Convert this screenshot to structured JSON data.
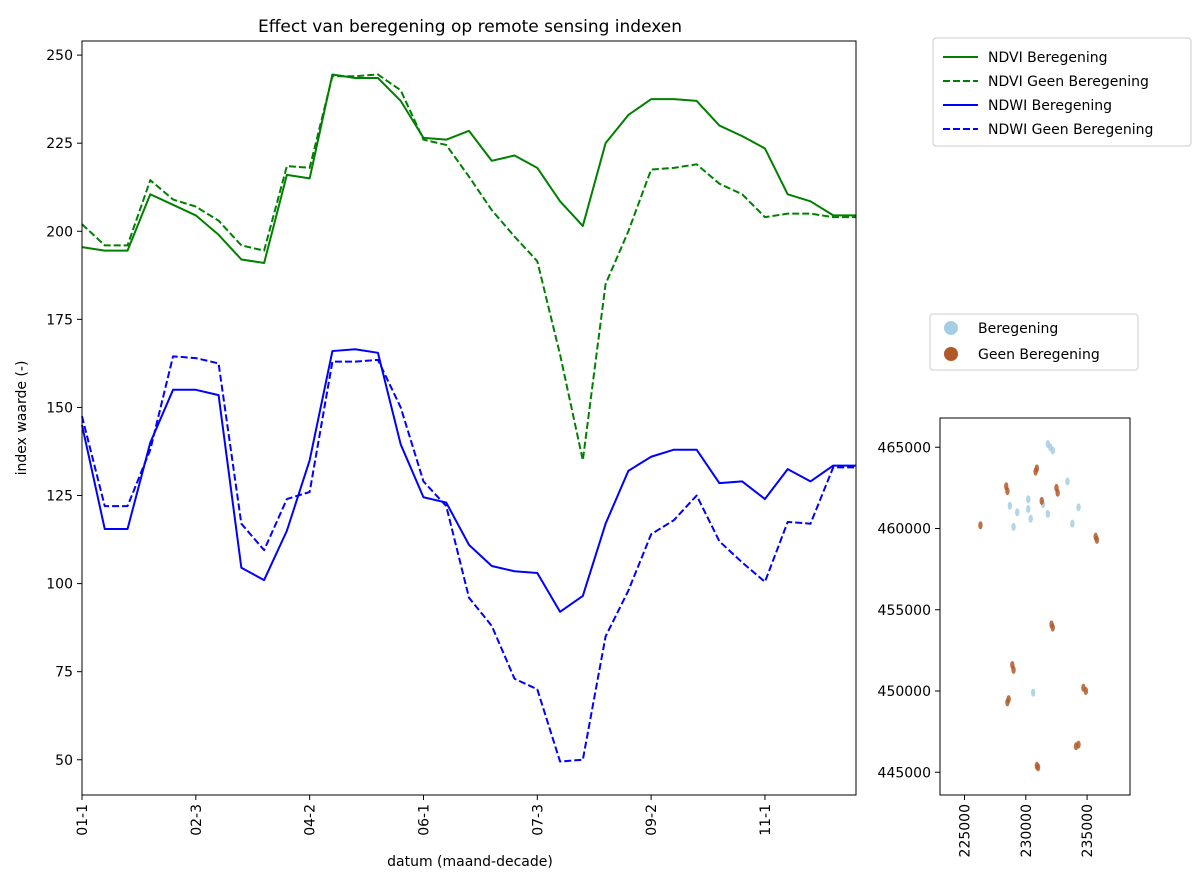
{
  "chart_data": [
    {
      "type": "line",
      "title": "Effect van beregening op remote sensing indexen",
      "xlabel": "datum (maand-decade)",
      "ylabel": "index waarde (-)",
      "ylim": [
        40,
        254
      ],
      "yticks": [
        50,
        75,
        100,
        125,
        150,
        175,
        200,
        225,
        250
      ],
      "x": [
        "01-1",
        "01-2",
        "01-3",
        "02-1",
        "02-2",
        "02-3",
        "03-1",
        "03-2",
        "03-3",
        "04-1",
        "04-2",
        "04-3",
        "05-1",
        "05-2",
        "05-3",
        "06-1",
        "06-2",
        "06-3",
        "07-1",
        "07-2",
        "07-3",
        "08-1",
        "08-2",
        "08-3",
        "09-1",
        "09-2",
        "09-3",
        "10-1",
        "10-2",
        "10-3",
        "11-1",
        "11-2",
        "11-3",
        "12-1",
        "12-2"
      ],
      "xtick_labels": [
        "01-1",
        "02-3",
        "04-2",
        "06-1",
        "07-3",
        "09-2",
        "11-1"
      ],
      "grid": false,
      "legend_position": "outside-right",
      "series": [
        {
          "name": "NDVI Beregening",
          "color": "#008000",
          "dash": "solid",
          "values": [
            195.5,
            194.5,
            194.5,
            210.5,
            207.5,
            204.5,
            199,
            192,
            191,
            216,
            215,
            244.5,
            243.5,
            243.5,
            237,
            226.5,
            226,
            228.5,
            220,
            221.5,
            218,
            208.5,
            201.5,
            225,
            233,
            237.5,
            237.5,
            237,
            230,
            227,
            223.5,
            210.5,
            208.5,
            204.5,
            204.5
          ]
        },
        {
          "name": "NDVI Geen Beregening",
          "color": "#008000",
          "dash": "dashed",
          "values": [
            202,
            196,
            196,
            214.5,
            209,
            207,
            203,
            196,
            194.5,
            218.5,
            218,
            244,
            244,
            244.5,
            240,
            226,
            224.5,
            215.5,
            206,
            198.5,
            191.5,
            165,
            135,
            185,
            200,
            217.5,
            218,
            219,
            213.5,
            210.5,
            204,
            205,
            205,
            204,
            204
          ]
        },
        {
          "name": "NDWI Beregening",
          "color": "#0000ff",
          "dash": "solid",
          "values": [
            145,
            115.5,
            115.5,
            140,
            155,
            155,
            153.5,
            104.5,
            101,
            115,
            135,
            166,
            166.5,
            165.5,
            139.5,
            124.5,
            123,
            111,
            105,
            103.5,
            103,
            92,
            96.5,
            117,
            132,
            136,
            138,
            138,
            128.5,
            129,
            124,
            132.5,
            129,
            133.5,
            133.5
          ]
        },
        {
          "name": "NDWI Geen Beregening",
          "color": "#0000ff",
          "dash": "dashed",
          "values": [
            147.5,
            122,
            122,
            138,
            164.5,
            164,
            162.5,
            117,
            109.5,
            124,
            126,
            163,
            163,
            163.5,
            150,
            129,
            122,
            96,
            88,
            73,
            70,
            49.5,
            50,
            85,
            98,
            114,
            118,
            125,
            112,
            106,
            100.5,
            117.5,
            117,
            133,
            133
          ]
        }
      ]
    },
    {
      "type": "scatter",
      "xlim": [
        223000,
        238500
      ],
      "ylim": [
        443600,
        466800
      ],
      "xticks": [
        225000,
        230000,
        235000
      ],
      "yticks": [
        445000,
        450000,
        455000,
        460000,
        465000
      ],
      "xtick_labels": [
        "225000",
        "230000",
        "235000"
      ],
      "ytick_labels": [
        "445000",
        "450000",
        "455000",
        "460000",
        "465000"
      ],
      "legend_position": "above",
      "series": [
        {
          "name": "Beregening",
          "color": "#a6cee3",
          "points": [
            [
              232000,
              465000
            ],
            [
              231800,
              465200
            ],
            [
              229300,
              461000
            ],
            [
              231400,
              461500
            ],
            [
              230400,
              460600
            ],
            [
              233800,
              460300
            ],
            [
              228700,
              461400
            ],
            [
              234300,
              461300
            ],
            [
              233400,
              462900
            ],
            [
              230200,
              461800
            ],
            [
              229000,
              460100
            ],
            [
              231800,
              460900
            ],
            [
              230600,
              449900
            ],
            [
              230200,
              461200
            ],
            [
              232200,
              464800
            ]
          ]
        },
        {
          "name": "Geen Beregening",
          "color": "#b15928",
          "points": [
            [
              228400,
              462600
            ],
            [
              228500,
              462300
            ],
            [
              230800,
              463500
            ],
            [
              230900,
              463700
            ],
            [
              232600,
              462200
            ],
            [
              232500,
              462500
            ],
            [
              231300,
              461700
            ],
            [
              226300,
              460200
            ],
            [
              235700,
              459500
            ],
            [
              235800,
              459300
            ],
            [
              232100,
              454100
            ],
            [
              232200,
              453900
            ],
            [
              228900,
              451600
            ],
            [
              229000,
              451300
            ],
            [
              228600,
              449500
            ],
            [
              228500,
              449300
            ],
            [
              234700,
              450200
            ],
            [
              234900,
              450000
            ],
            [
              234300,
              446700
            ],
            [
              234100,
              446600
            ],
            [
              230900,
              445400
            ],
            [
              231000,
              445300
            ]
          ]
        }
      ]
    }
  ]
}
